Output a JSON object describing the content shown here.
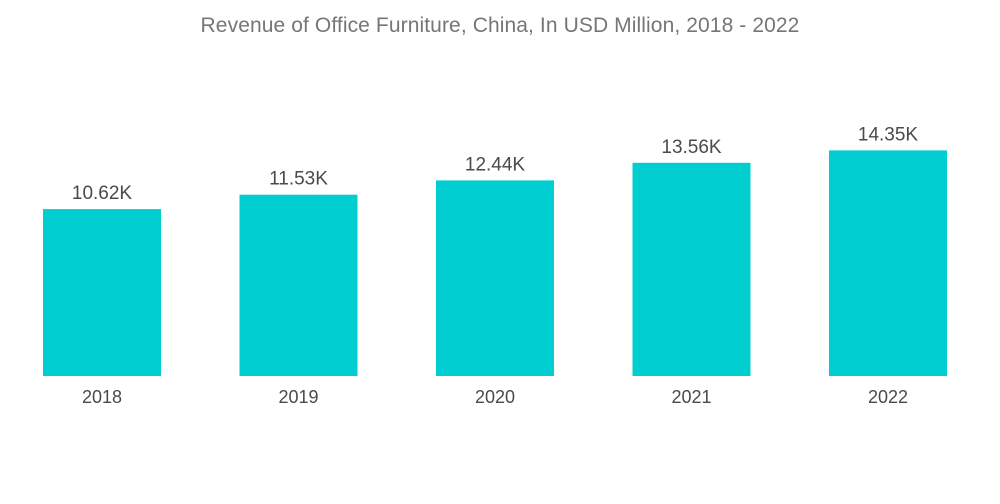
{
  "chart_data": {
    "type": "bar",
    "title": "Revenue of Office Furniture, China, In USD Million,  2018 - 2022",
    "categories": [
      "2018",
      "2019",
      "2020",
      "2021",
      "2022"
    ],
    "values": [
      10.62,
      11.53,
      12.44,
      13.56,
      14.35
    ],
    "value_labels": [
      "10.62K",
      "11.53K",
      "12.44K",
      "13.56K",
      "14.35K"
    ],
    "xlabel": "",
    "ylabel": "",
    "ylim": [
      0,
      21
    ],
    "grid": false,
    "legend": "none",
    "bar_color": "#00ced1"
  }
}
